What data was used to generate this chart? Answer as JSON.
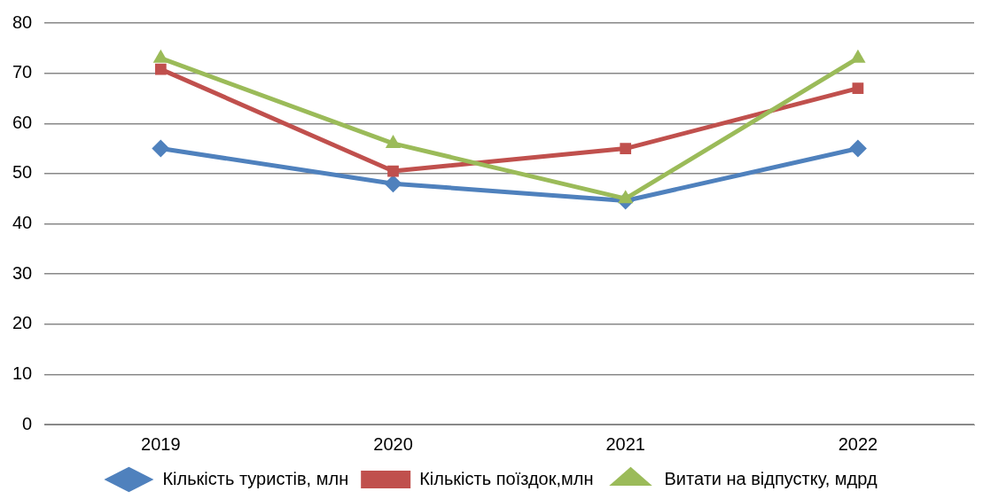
{
  "chart_data": {
    "type": "line",
    "categories": [
      "2019",
      "2020",
      "2021",
      "2022"
    ],
    "series": [
      {
        "name": "Кількість туристів, млн",
        "color": "#4f81bd",
        "marker": "diamond",
        "values": [
          55,
          48,
          44.6,
          55
        ]
      },
      {
        "name": "Кількість поїздок,млн",
        "color": "#c0504d",
        "marker": "square",
        "values": [
          70.8,
          50.5,
          55,
          67
        ]
      },
      {
        "name": "Витати на відпустку, мдрд",
        "color": "#9bbb59",
        "marker": "triangle",
        "values": [
          73,
          56,
          45,
          73
        ]
      }
    ],
    "ylim": [
      0,
      80
    ],
    "yticks": [
      0,
      10,
      20,
      30,
      40,
      50,
      60,
      70,
      80
    ],
    "grid": "y",
    "legend": "bottom",
    "line_style": "solid"
  }
}
